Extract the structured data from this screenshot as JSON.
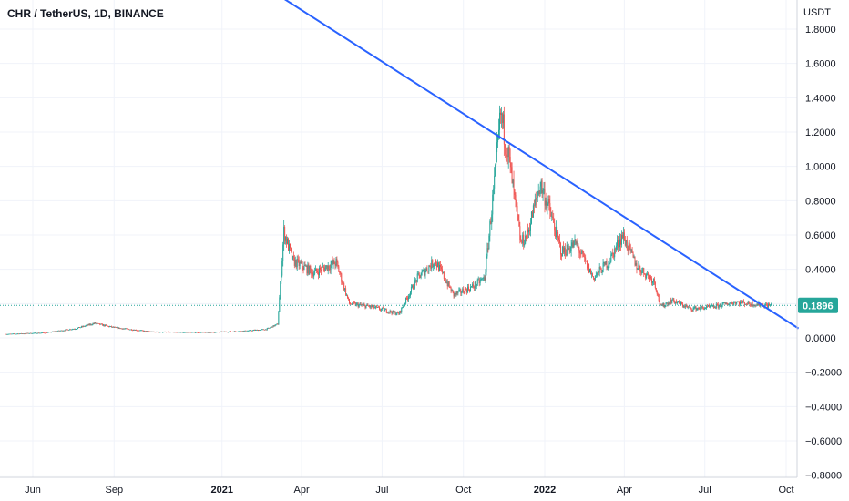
{
  "chart_data": {
    "type": "candlestick",
    "title": "CHR / TetherUS, 1D, BINANCE",
    "y_unit": "USDT",
    "y_range": [
      -0.8,
      1.9
    ],
    "y_ticks": [
      "1.8000",
      "1.6000",
      "1.4000",
      "1.2000",
      "1.0000",
      "0.8000",
      "0.6000",
      "0.4000",
      "0.2000",
      "0.0000",
      "−0.2000",
      "−0.4000",
      "−0.6000",
      "−0.8000"
    ],
    "y_tick_values": [
      1.8,
      1.6,
      1.4,
      1.2,
      1.0,
      0.8,
      0.6,
      0.4,
      0.2,
      0.0,
      -0.2,
      -0.4,
      -0.6,
      -0.8
    ],
    "x_ticks": [
      {
        "label": "Jun",
        "date": "2020-06-01",
        "bold": false
      },
      {
        "label": "Sep",
        "date": "2020-09-01",
        "bold": false
      },
      {
        "label": "2021",
        "date": "2021-01-01",
        "bold": true
      },
      {
        "label": "Apr",
        "date": "2021-04-01",
        "bold": false
      },
      {
        "label": "Jul",
        "date": "2021-07-01",
        "bold": false
      },
      {
        "label": "Oct",
        "date": "2021-10-01",
        "bold": false
      },
      {
        "label": "2022",
        "date": "2022-01-01",
        "bold": true
      },
      {
        "label": "Apr",
        "date": "2022-04-01",
        "bold": false
      },
      {
        "label": "Jul",
        "date": "2022-07-01",
        "bold": false
      },
      {
        "label": "Oct",
        "date": "2022-10-01",
        "bold": false
      }
    ],
    "x_range": [
      "2020-05-02",
      "2022-10-20"
    ],
    "last_price": "0.1896",
    "last_price_value": 0.1896,
    "trendline": {
      "start": {
        "date": "2021-02-24",
        "price": 2.03
      },
      "end": {
        "date": "2022-10-15",
        "price": 0.055
      }
    },
    "price_path": [
      [
        "2020-05-02",
        0.022
      ],
      [
        "2020-06-15",
        0.03
      ],
      [
        "2020-07-20",
        0.055
      ],
      [
        "2020-08-10",
        0.085
      ],
      [
        "2020-09-01",
        0.06
      ],
      [
        "2020-10-15",
        0.035
      ],
      [
        "2020-12-15",
        0.032
      ],
      [
        "2021-01-25",
        0.04
      ],
      [
        "2021-02-20",
        0.05
      ],
      [
        "2021-03-05",
        0.08
      ],
      [
        "2021-03-12",
        0.62
      ],
      [
        "2021-03-22",
        0.45
      ],
      [
        "2021-04-15",
        0.38
      ],
      [
        "2021-05-10",
        0.44
      ],
      [
        "2021-05-25",
        0.2
      ],
      [
        "2021-06-20",
        0.18
      ],
      [
        "2021-07-20",
        0.14
      ],
      [
        "2021-08-10",
        0.35
      ],
      [
        "2021-08-30",
        0.45
      ],
      [
        "2021-09-20",
        0.25
      ],
      [
        "2021-10-12",
        0.3
      ],
      [
        "2021-10-25",
        0.35
      ],
      [
        "2021-11-05",
        0.9
      ],
      [
        "2021-11-12",
        1.3
      ],
      [
        "2021-11-20",
        1.1
      ],
      [
        "2021-11-28",
        0.8
      ],
      [
        "2021-12-05",
        0.55
      ],
      [
        "2021-12-12",
        0.6
      ],
      [
        "2021-12-27",
        0.9
      ],
      [
        "2022-01-06",
        0.75
      ],
      [
        "2022-01-20",
        0.5
      ],
      [
        "2022-02-05",
        0.55
      ],
      [
        "2022-02-25",
        0.35
      ],
      [
        "2022-03-15",
        0.45
      ],
      [
        "2022-03-30",
        0.6
      ],
      [
        "2022-04-15",
        0.42
      ],
      [
        "2022-05-05",
        0.33
      ],
      [
        "2022-05-12",
        0.18
      ],
      [
        "2022-05-25",
        0.22
      ],
      [
        "2022-06-15",
        0.17
      ],
      [
        "2022-07-10",
        0.18
      ],
      [
        "2022-08-05",
        0.21
      ],
      [
        "2022-08-20",
        0.2
      ],
      [
        "2022-09-10",
        0.19
      ]
    ],
    "colors": {
      "up": "#26a69a",
      "down": "#ef5350",
      "trendline": "#2962ff",
      "price_label": "#26a69a",
      "grid": "#f0f3fa"
    },
    "grid": true
  }
}
